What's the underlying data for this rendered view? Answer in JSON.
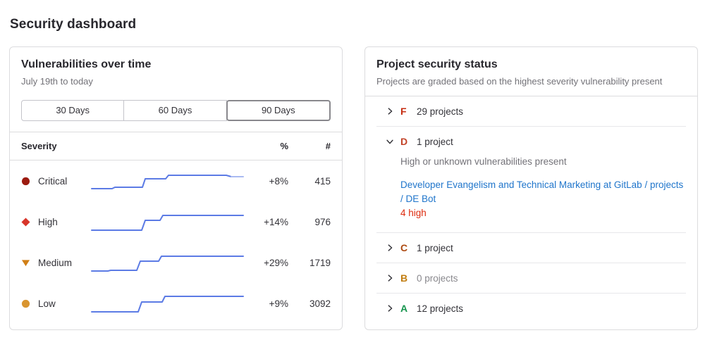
{
  "page": {
    "title": "Security dashboard"
  },
  "colors": {
    "link": "#1f75cb",
    "danger": "#dd2b0e",
    "spark_line": "#5c7be5",
    "spark_tail": "#a9baf1"
  },
  "vulns_card": {
    "title": "Vulnerabilities over time",
    "subtitle": "July 19th to today",
    "range_buttons": [
      {
        "label": "30 Days",
        "selected": false
      },
      {
        "label": "60 Days",
        "selected": false
      },
      {
        "label": "90 Days",
        "selected": true
      }
    ],
    "table": {
      "headers": {
        "severity": "Severity",
        "percent": "%",
        "count": "#"
      },
      "rows": [
        {
          "severity": "Critical",
          "icon": "circle",
          "icon_color": "#9c1b10",
          "percent": "+8%",
          "count": "415",
          "spark_main": "1,27 30,27 34,25 73,25 77,13 106,13 110,8 192,8 199,10",
          "spark_tail": "199,10 216,10"
        },
        {
          "severity": "High",
          "icon": "diamond",
          "icon_color": "#d8352a",
          "percent": "+14%",
          "count": "976",
          "spark_main": "1,28 72,28 77,14 98,14 102,7 216,7",
          "spark_tail": ""
        },
        {
          "severity": "Medium",
          "icon": "triangle-down",
          "icon_color": "#d07f16",
          "percent": "+29%",
          "count": "1719",
          "spark_main": "1,28 24,28 28,27 65,27 70,14 96,14 100,7 216,7",
          "spark_tail": ""
        },
        {
          "severity": "Low",
          "icon": "circle",
          "icon_color": "#d99530",
          "percent": "+9%",
          "count": "3092",
          "spark_main": "1,28 67,28 72,14 101,14 105,6 216,6",
          "spark_tail": ""
        }
      ]
    }
  },
  "status_card": {
    "title": "Project security status",
    "subtitle": "Projects are graded based on the highest severity vulnerability present",
    "groups": [
      {
        "grade": "F",
        "grade_color": "#c62d12",
        "label": "29 projects",
        "expanded": false,
        "muted": false
      },
      {
        "grade": "D",
        "grade_color": "#c24328",
        "label": "1 project",
        "expanded": true,
        "muted": false,
        "description": "High or unknown vulnerabilities present",
        "project_link": "Developer Evangelism and Technical Marketing at GitLab / projects / DE Bot",
        "vulnerability_summary": "4 high"
      },
      {
        "grade": "C",
        "grade_color": "#ad4a11",
        "label": "1 project",
        "expanded": false,
        "muted": false
      },
      {
        "grade": "B",
        "grade_color": "#c17d10",
        "label": "0 projects",
        "expanded": false,
        "muted": true
      },
      {
        "grade": "A",
        "grade_color": "#17954e",
        "label": "12 projects",
        "expanded": false,
        "muted": false
      }
    ]
  },
  "chart_data": {
    "type": "line",
    "title": "Vulnerabilities over time",
    "x_range_label": "July 19th to today",
    "legend_position": "none",
    "series": [
      {
        "name": "Critical",
        "change": "+8%",
        "count": 415
      },
      {
        "name": "High",
        "change": "+14%",
        "count": 976
      },
      {
        "name": "Medium",
        "change": "+29%",
        "count": 1719
      },
      {
        "name": "Low",
        "change": "+9%",
        "count": 3092
      }
    ]
  }
}
